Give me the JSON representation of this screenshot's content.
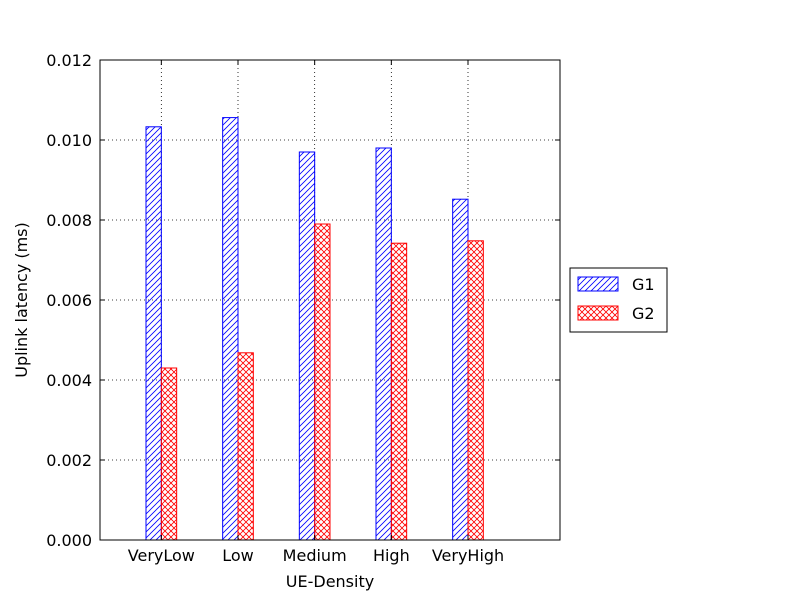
{
  "chart_data": {
    "type": "bar",
    "title": "",
    "xlabel": "UE-Density",
    "ylabel": "Uplink latency (ms)",
    "categories": [
      "VeryLow",
      "Low",
      "Medium",
      "High",
      "VeryHigh"
    ],
    "series": [
      {
        "name": "G1",
        "color": "#0000ff",
        "pattern": "diagonal-hatch",
        "values": [
          0.01033,
          0.01056,
          0.0097,
          0.0098,
          0.00852
        ]
      },
      {
        "name": "G2",
        "color": "#ff0000",
        "pattern": "cross-hatch",
        "values": [
          0.0043,
          0.00468,
          0.0079,
          0.00742,
          0.00748
        ]
      }
    ],
    "ylim": [
      0,
      0.012
    ],
    "yticks": [
      "0.000",
      "0.002",
      "0.004",
      "0.006",
      "0.008",
      "0.010",
      "0.012"
    ],
    "grid": true,
    "legend_position": "right"
  }
}
